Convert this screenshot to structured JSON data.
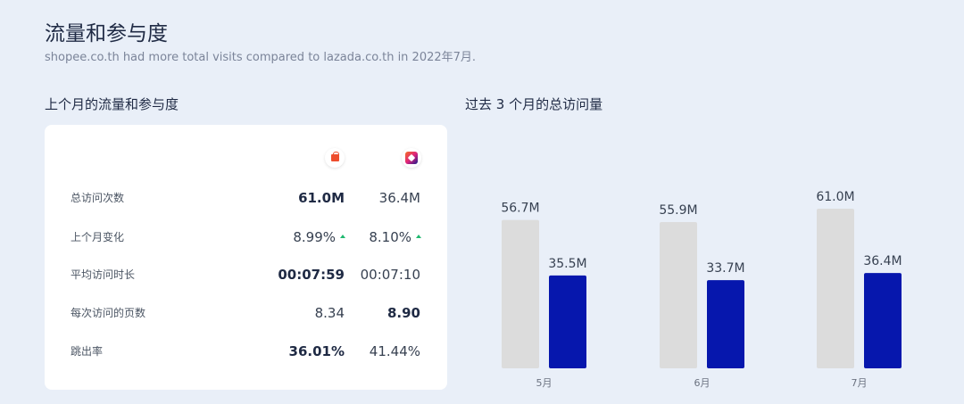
{
  "header": {
    "title": "流量和参与度",
    "subtitle": "shopee.co.th had more total visits compared to lazada.co.th in 2022年7月."
  },
  "table": {
    "title": "上个月的流量和参与度",
    "brands": [
      {
        "icon": "shopee-logo-icon",
        "color": "#ee4d2d"
      },
      {
        "icon": "lazada-logo-icon",
        "color": "#1a1a8c"
      }
    ],
    "rows": [
      {
        "label": "总访问次数",
        "v1": "61.0M",
        "v2": "36.4M",
        "bold": 1
      },
      {
        "label": "上个月变化",
        "v1": "8.99%",
        "v2": "8.10%",
        "bold": 0,
        "trend": "up"
      },
      {
        "label": "平均访问时长",
        "v1": "00:07:59",
        "v2": "00:07:10",
        "bold": 1
      },
      {
        "label": "每次访问的页数",
        "v1": "8.34",
        "v2": "8.90",
        "bold": 2
      },
      {
        "label": "跳出率",
        "v1": "36.01%",
        "v2": "41.44%",
        "bold": 1
      }
    ]
  },
  "chart_data": {
    "type": "bar",
    "title": "过去 3 个月的总访问量",
    "categories": [
      "5月",
      "6月",
      "7月"
    ],
    "series": [
      {
        "values": [
          56.7,
          55.9,
          61.0
        ],
        "labels": [
          "56.7M",
          "55.9M",
          "61.0M"
        ],
        "color": "#dcdcdc"
      },
      {
        "values": [
          35.5,
          33.7,
          36.4
        ],
        "labels": [
          "35.5M",
          "33.7M",
          "36.4M"
        ],
        "color": "#0617ad"
      }
    ],
    "ylim": [
      0,
      61
    ],
    "grid": false,
    "legend": "none"
  }
}
